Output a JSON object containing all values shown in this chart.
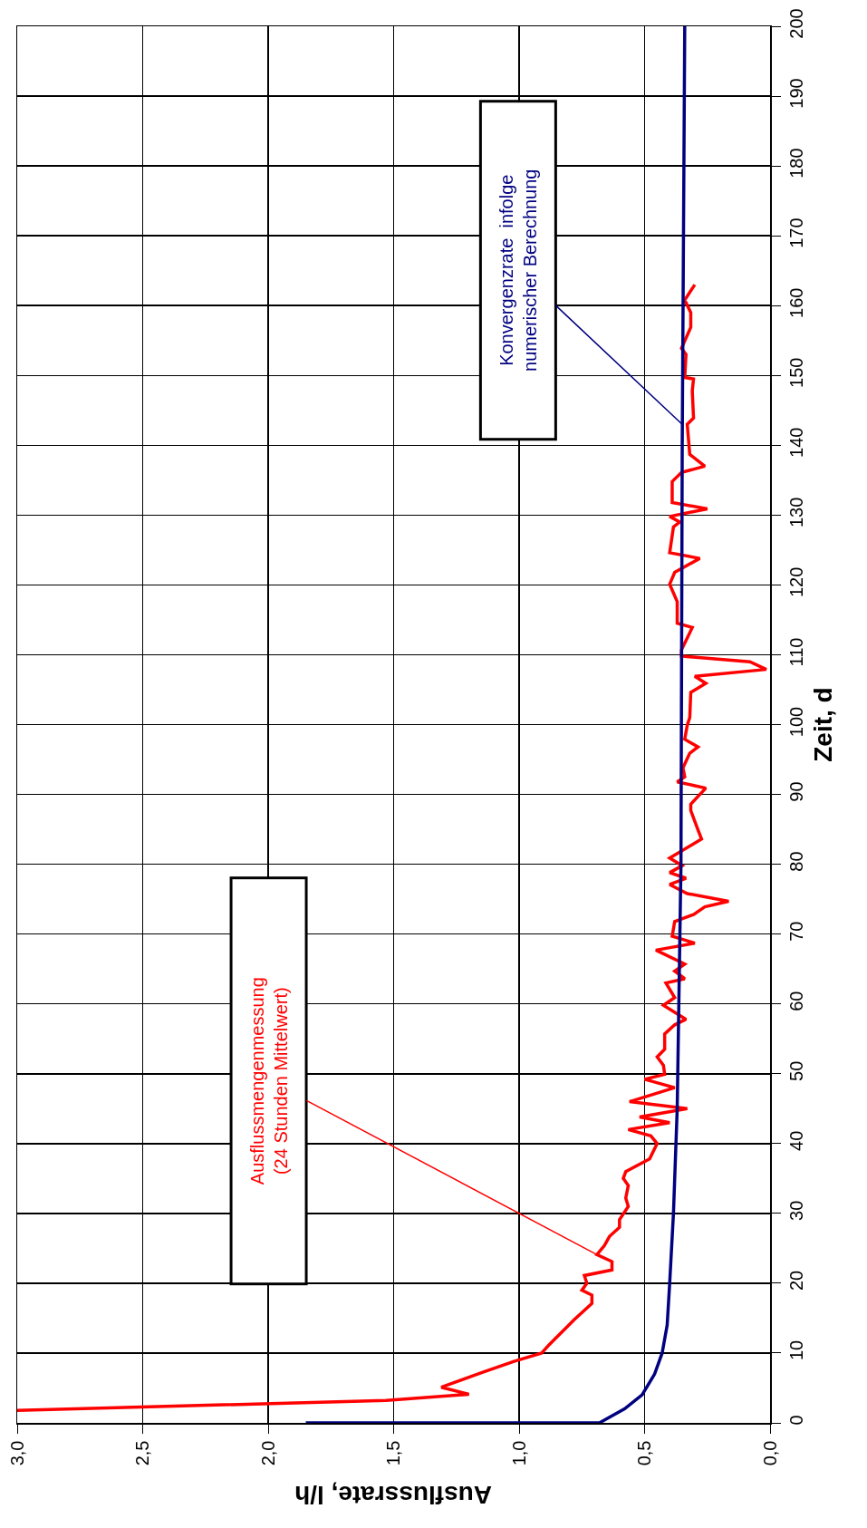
{
  "chart_data": {
    "type": "line",
    "xlabel": "Ausflussrate, l/h",
    "ylabel": "Zeit, d",
    "xlim": [
      3,
      0
    ],
    "xticks": [
      {
        "value": 3,
        "label": "3,0"
      },
      {
        "value": 2.5,
        "label": "2,5"
      },
      {
        "value": 2,
        "label": "2,0"
      },
      {
        "value": 1.5,
        "label": "1,5"
      },
      {
        "value": 1,
        "label": "1,0"
      },
      {
        "value": 0.5,
        "label": "0,5"
      },
      {
        "value": 0,
        "label": "0,0"
      }
    ],
    "ylim": [
      0,
      200
    ],
    "yticks": [
      0,
      10,
      20,
      30,
      40,
      50,
      60,
      70,
      80,
      90,
      100,
      110,
      120,
      130,
      140,
      150,
      160,
      170,
      180,
      190,
      200
    ],
    "grid": true,
    "series": [
      {
        "color": "#ff0000",
        "x": [
          3.0,
          1.53,
          1.2,
          1.31,
          1.15,
          1.02,
          0.91,
          0.88,
          0.78,
          0.71,
          0.71,
          0.75,
          0.73,
          0.74,
          0.63,
          0.63,
          0.69,
          0.66,
          0.64,
          0.6,
          0.6,
          0.565,
          0.575,
          0.565,
          0.585,
          0.575,
          0.48,
          0.45,
          0.475,
          0.565,
          0.4,
          0.52,
          0.33,
          0.56,
          0.38,
          0.5,
          0.42,
          0.425,
          0.45,
          0.42,
          0.42,
          0.38,
          0.335,
          0.425,
          0.38,
          0.415,
          0.34,
          0.38,
          0.34,
          0.455,
          0.3,
          0.39,
          0.38,
          0.305,
          0.26,
          0.165,
          0.33,
          0.4,
          0.335,
          0.4,
          0.35,
          0.4,
          0.353,
          0.273,
          0.287,
          0.316,
          0.316,
          0.256,
          0.37,
          0.34,
          0.347,
          0.32,
          0.287,
          0.34,
          0.33,
          0.32,
          0.316,
          0.256,
          0.3,
          0.015,
          0.08,
          0.353,
          0.353,
          0.31,
          0.37,
          0.37,
          0.4,
          0.38,
          0.28,
          0.4,
          0.385,
          0.36,
          0.4,
          0.25,
          0.39,
          0.39,
          0.353,
          0.26,
          0.32,
          0.33,
          0.305,
          0.31,
          0.305,
          0.34,
          0.335,
          0.353,
          0.316,
          0.316,
          0.34,
          0.3
        ],
        "values": [
          1.8,
          3.2,
          4.1,
          5.1,
          7.2,
          8.8,
          10,
          11.2,
          14.8,
          17.1,
          18.3,
          19,
          20,
          21.1,
          21.9,
          23.1,
          24.1,
          25.4,
          26.7,
          28,
          29.1,
          31,
          32.2,
          34,
          35,
          36,
          37.8,
          40,
          41.1,
          42,
          43,
          43.8,
          45,
          46,
          48,
          49.2,
          49.9,
          51.2,
          52.4,
          53.5,
          55.7,
          57,
          57.8,
          59.8,
          60.9,
          63,
          63.6,
          64.7,
          65.7,
          67.7,
          68.7,
          69.7,
          71.8,
          72.8,
          73.9,
          74.7,
          75.8,
          77.1,
          78,
          78.8,
          79.8,
          80.9,
          81.9,
          83.6,
          84.9,
          87.7,
          88.6,
          90.9,
          91.8,
          92.5,
          93.8,
          95.9,
          96.8,
          97.9,
          99.9,
          101,
          104.6,
          105.9,
          106.9,
          107.9,
          109,
          109.8,
          110.7,
          113.9,
          114.5,
          117.6,
          120.1,
          121.8,
          123.8,
          124.6,
          128.3,
          129,
          129.8,
          130.9,
          131.8,
          134.8,
          136.1,
          137,
          138.7,
          143,
          143.9,
          147.8,
          149.5,
          149.7,
          153,
          153.9,
          156.9,
          159,
          160.8,
          163
        ]
      },
      {
        "color": "#000080",
        "x": [
          1.85,
          0.68,
          0.63,
          0.58,
          0.51,
          0.46,
          0.43,
          0.41,
          0.4,
          0.385,
          0.37,
          0.355,
          0.35,
          0.34
        ],
        "values": [
          0,
          0,
          1,
          2,
          4,
          7,
          10,
          14,
          20,
          30,
          45,
          80,
          140,
          200
        ]
      }
    ],
    "annotations": [
      {
        "text": "Ausflussmengenmessung\n(24 Stunden Mittelwert)",
        "x": 0.69,
        "y": 24.1
      },
      {
        "text": "Konvergenzrate  infolge\nnumerischer Berechnung",
        "x": 0.35,
        "y": 143
      }
    ]
  }
}
